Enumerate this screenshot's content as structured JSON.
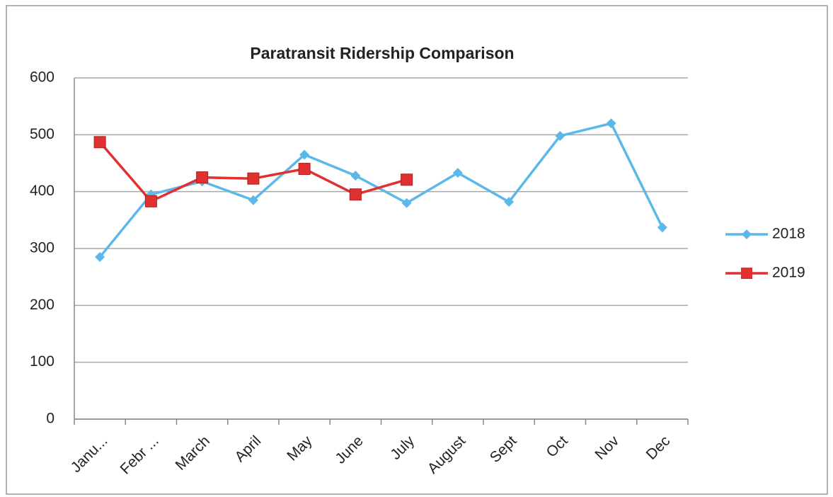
{
  "chart_data": {
    "type": "line",
    "title": "Paratransit Ridership Comparison",
    "categories": [
      "Janu...",
      "Febr ...",
      "March",
      "April",
      "May",
      "June",
      "July",
      "August",
      "Sept",
      "Oct",
      "Nov",
      "Dec"
    ],
    "series": [
      {
        "name": "2018",
        "color": "#5bb8e8",
        "marker": "diamond",
        "values": [
          285,
          395,
          418,
          385,
          465,
          428,
          380,
          433,
          382,
          498,
          520,
          337
        ]
      },
      {
        "name": "2019",
        "color": "#e03030",
        "marker": "square",
        "values": [
          487,
          383,
          425,
          423,
          440,
          395,
          421,
          null,
          null,
          null,
          null,
          null
        ]
      }
    ],
    "ylim": [
      0,
      600
    ],
    "yticks": [
      0,
      100,
      200,
      300,
      400,
      500,
      600
    ],
    "grid": true,
    "legend": "right"
  }
}
